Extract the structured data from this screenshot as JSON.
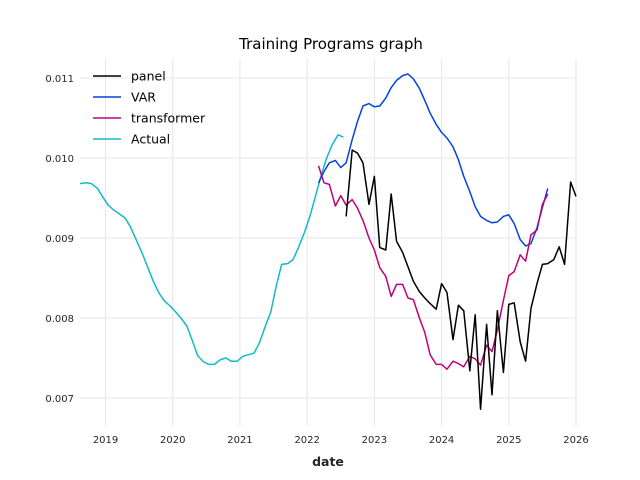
{
  "chart_data": {
    "type": "line",
    "title": "Training Programs graph",
    "xlabel": "date",
    "ylabel": "",
    "xlim": [
      2018.62,
      2026.0
    ],
    "ylim": [
      0.00665,
      0.01125
    ],
    "x_ticks": [
      2019,
      2020,
      2021,
      2022,
      2023,
      2024,
      2025,
      2026
    ],
    "y_ticks": [
      0.007,
      0.008,
      0.009,
      0.01,
      0.011
    ],
    "y_tick_labels": [
      "0.007",
      "0.008",
      "0.009",
      "0.010",
      "0.011"
    ],
    "grid": true,
    "legend_position": "top-left",
    "series": [
      {
        "name": "panel",
        "color": "#000000",
        "points": [
          [
            2022.58,
            0.00927
          ],
          [
            2022.67,
            0.0101
          ],
          [
            2022.75,
            0.01006
          ],
          [
            2022.83,
            0.00994
          ],
          [
            2022.92,
            0.00942
          ],
          [
            2023.0,
            0.00977
          ],
          [
            2023.08,
            0.00888
          ],
          [
            2023.17,
            0.00885
          ],
          [
            2023.25,
            0.00955
          ],
          [
            2023.33,
            0.00896
          ],
          [
            2023.42,
            0.00882
          ],
          [
            2023.5,
            0.00864
          ],
          [
            2023.58,
            0.00846
          ],
          [
            2023.67,
            0.00833
          ],
          [
            2023.75,
            0.00825
          ],
          [
            2023.83,
            0.00818
          ],
          [
            2023.92,
            0.00811
          ],
          [
            2024.0,
            0.00843
          ],
          [
            2024.08,
            0.00832
          ],
          [
            2024.17,
            0.00773
          ],
          [
            2024.25,
            0.00816
          ],
          [
            2024.33,
            0.00809
          ],
          [
            2024.42,
            0.00734
          ],
          [
            2024.5,
            0.00804
          ],
          [
            2024.58,
            0.00686
          ],
          [
            2024.67,
            0.00792
          ],
          [
            2024.75,
            0.00704
          ],
          [
            2024.83,
            0.00809
          ],
          [
            2024.92,
            0.00732
          ],
          [
            2025.0,
            0.00817
          ],
          [
            2025.08,
            0.00819
          ],
          [
            2025.17,
            0.0077
          ],
          [
            2025.25,
            0.00746
          ],
          [
            2025.33,
            0.00812
          ],
          [
            2025.42,
            0.00843
          ],
          [
            2025.5,
            0.00867
          ],
          [
            2025.58,
            0.00868
          ],
          [
            2025.67,
            0.00873
          ],
          [
            2025.75,
            0.00889
          ],
          [
            2025.83,
            0.00867
          ],
          [
            2025.92,
            0.0097
          ],
          [
            2026.0,
            0.00952
          ]
        ]
      },
      {
        "name": "VAR",
        "color": "#0343df",
        "points": [
          [
            2022.17,
            0.00969
          ],
          [
            2022.25,
            0.00983
          ],
          [
            2022.33,
            0.00994
          ],
          [
            2022.42,
            0.00997
          ],
          [
            2022.5,
            0.00988
          ],
          [
            2022.58,
            0.00994
          ],
          [
            2022.67,
            0.01023
          ],
          [
            2022.75,
            0.01046
          ],
          [
            2022.83,
            0.01065
          ],
          [
            2022.92,
            0.01068
          ],
          [
            2023.0,
            0.01064
          ],
          [
            2023.08,
            0.01065
          ],
          [
            2023.17,
            0.01075
          ],
          [
            2023.25,
            0.01088
          ],
          [
            2023.33,
            0.01097
          ],
          [
            2023.42,
            0.01103
          ],
          [
            2023.5,
            0.01105
          ],
          [
            2023.58,
            0.01099
          ],
          [
            2023.67,
            0.01087
          ],
          [
            2023.75,
            0.01072
          ],
          [
            2023.83,
            0.01056
          ],
          [
            2023.92,
            0.01042
          ],
          [
            2024.0,
            0.01032
          ],
          [
            2024.08,
            0.01025
          ],
          [
            2024.17,
            0.01014
          ],
          [
            2024.25,
            0.00998
          ],
          [
            2024.33,
            0.00977
          ],
          [
            2024.42,
            0.00958
          ],
          [
            2024.5,
            0.00939
          ],
          [
            2024.58,
            0.00927
          ],
          [
            2024.67,
            0.00922
          ],
          [
            2024.75,
            0.00919
          ],
          [
            2024.83,
            0.0092
          ],
          [
            2024.92,
            0.00927
          ],
          [
            2025.0,
            0.00929
          ],
          [
            2025.08,
            0.00918
          ],
          [
            2025.17,
            0.00898
          ],
          [
            2025.25,
            0.0089
          ],
          [
            2025.33,
            0.00893
          ],
          [
            2025.42,
            0.00913
          ],
          [
            2025.5,
            0.00938
          ],
          [
            2025.58,
            0.00962
          ]
        ]
      },
      {
        "name": "transformer",
        "color": "#c20078",
        "points": [
          [
            2022.17,
            0.0099
          ],
          [
            2022.25,
            0.00969
          ],
          [
            2022.33,
            0.00967
          ],
          [
            2022.42,
            0.0094
          ],
          [
            2022.5,
            0.00953
          ],
          [
            2022.58,
            0.00941
          ],
          [
            2022.67,
            0.00948
          ],
          [
            2022.75,
            0.00937
          ],
          [
            2022.83,
            0.00922
          ],
          [
            2022.92,
            0.009
          ],
          [
            2023.0,
            0.00885
          ],
          [
            2023.08,
            0.00863
          ],
          [
            2023.17,
            0.00852
          ],
          [
            2023.25,
            0.00827
          ],
          [
            2023.33,
            0.00842
          ],
          [
            2023.42,
            0.00842
          ],
          [
            2023.5,
            0.00825
          ],
          [
            2023.58,
            0.00823
          ],
          [
            2023.67,
            0.008
          ],
          [
            2023.75,
            0.00782
          ],
          [
            2023.83,
            0.00754
          ],
          [
            2023.92,
            0.00742
          ],
          [
            2024.0,
            0.00742
          ],
          [
            2024.08,
            0.00736
          ],
          [
            2024.17,
            0.00746
          ],
          [
            2024.25,
            0.00743
          ],
          [
            2024.33,
            0.00739
          ],
          [
            2024.42,
            0.00752
          ],
          [
            2024.5,
            0.00749
          ],
          [
            2024.58,
            0.00741
          ],
          [
            2024.67,
            0.00766
          ],
          [
            2024.75,
            0.00758
          ],
          [
            2024.83,
            0.00785
          ],
          [
            2024.92,
            0.00822
          ],
          [
            2025.0,
            0.00853
          ],
          [
            2025.08,
            0.00858
          ],
          [
            2025.17,
            0.00879
          ],
          [
            2025.25,
            0.00871
          ],
          [
            2025.33,
            0.00904
          ],
          [
            2025.42,
            0.0091
          ],
          [
            2025.5,
            0.00942
          ],
          [
            2025.58,
            0.00955
          ]
        ]
      },
      {
        "name": "Actual",
        "color": "#13bac2",
        "points": [
          [
            2018.62,
            0.00968
          ],
          [
            2018.71,
            0.00969
          ],
          [
            2018.79,
            0.00968
          ],
          [
            2018.88,
            0.00962
          ],
          [
            2018.96,
            0.00951
          ],
          [
            2019.04,
            0.00941
          ],
          [
            2019.12,
            0.00935
          ],
          [
            2019.21,
            0.0093
          ],
          [
            2019.29,
            0.00925
          ],
          [
            2019.37,
            0.00914
          ],
          [
            2019.46,
            0.00897
          ],
          [
            2019.54,
            0.00882
          ],
          [
            2019.62,
            0.00865
          ],
          [
            2019.71,
            0.00846
          ],
          [
            2019.79,
            0.00832
          ],
          [
            2019.87,
            0.00822
          ],
          [
            2019.96,
            0.00815
          ],
          [
            2020.04,
            0.00808
          ],
          [
            2020.12,
            0.008
          ],
          [
            2020.21,
            0.0079
          ],
          [
            2020.29,
            0.00772
          ],
          [
            2020.37,
            0.00753
          ],
          [
            2020.46,
            0.00745
          ],
          [
            2020.54,
            0.00742
          ],
          [
            2020.62,
            0.00742
          ],
          [
            2020.71,
            0.00748
          ],
          [
            2020.79,
            0.0075
          ],
          [
            2020.87,
            0.00746
          ],
          [
            2020.96,
            0.00746
          ],
          [
            2021.04,
            0.00752
          ],
          [
            2021.12,
            0.00754
          ],
          [
            2021.21,
            0.00756
          ],
          [
            2021.29,
            0.00769
          ],
          [
            2021.37,
            0.00788
          ],
          [
            2021.46,
            0.00808
          ],
          [
            2021.54,
            0.0084
          ],
          [
            2021.62,
            0.00867
          ],
          [
            2021.71,
            0.00868
          ],
          [
            2021.79,
            0.00873
          ],
          [
            2021.87,
            0.00888
          ],
          [
            2021.96,
            0.00907
          ],
          [
            2022.04,
            0.00927
          ],
          [
            2022.12,
            0.00951
          ],
          [
            2022.21,
            0.00979
          ],
          [
            2022.29,
            0.01
          ],
          [
            2022.37,
            0.01016
          ],
          [
            2022.46,
            0.01029
          ],
          [
            2022.54,
            0.01026
          ]
        ]
      }
    ]
  }
}
